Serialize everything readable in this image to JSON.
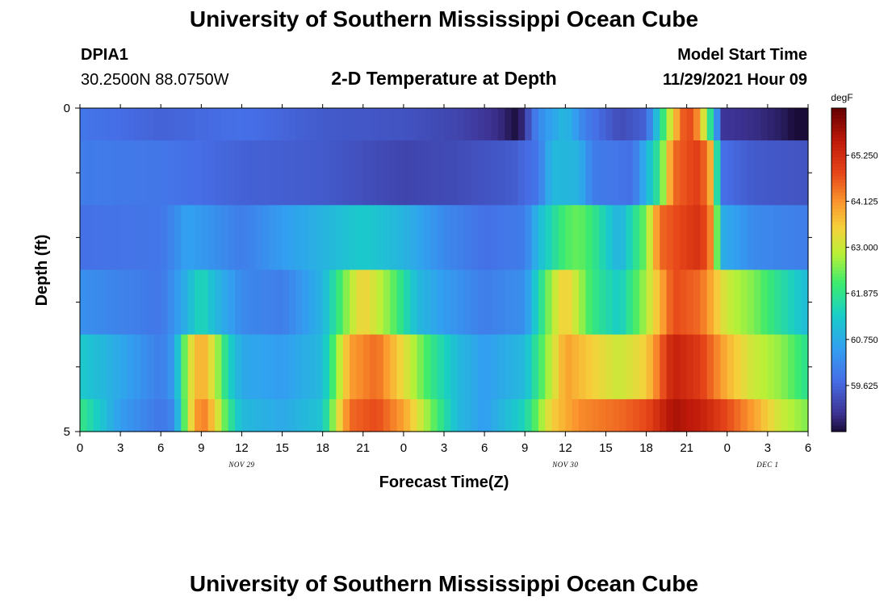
{
  "page": {
    "title": "University of Southern Mississippi Ocean Cube",
    "station_id": "DPIA1",
    "coordinates": "30.2500N  88.0750W",
    "chart_heading": "2-D Temperature at Depth",
    "model_label": "Model Start Time",
    "model_start": "11/29/2021 Hour 09",
    "bottom_title": "University of Southern Mississippi Ocean Cube"
  },
  "chart_data": {
    "type": "heatmap",
    "title": "2-D Temperature at Depth",
    "xlabel": "Forecast Time(Z)",
    "ylabel": "Depth (ft)",
    "colorbar_label": "degF",
    "colorbar_ticks": [
      59.625,
      60.75,
      61.875,
      63.0,
      64.125,
      65.25
    ],
    "colorbar_tick_labels": [
      "59.625",
      "60.750",
      "61.875",
      "63.000",
      "64.125",
      "65.250"
    ],
    "zlim": [
      58.5,
      66.4
    ],
    "xlim": [
      0,
      54
    ],
    "x_ticks": [
      0,
      3,
      6,
      9,
      12,
      15,
      18,
      21,
      24,
      27,
      30,
      33,
      36,
      39,
      42,
      45,
      48,
      51,
      54
    ],
    "x_tick_labels": [
      "0",
      "3",
      "6",
      "9",
      "12",
      "15",
      "18",
      "21",
      "0",
      "3",
      "6",
      "9",
      "12",
      "15",
      "18",
      "21",
      "0",
      "3",
      "6"
    ],
    "date_labels": [
      {
        "label": "NOV 29",
        "x": 12
      },
      {
        "label": "NOV 30",
        "x": 36
      },
      {
        "label": "DEC 1",
        "x": 51
      }
    ],
    "ylim": [
      0,
      5
    ],
    "y_tick_labels": [
      {
        "value": 0,
        "label": "0"
      },
      {
        "value": 5,
        "label": "5"
      }
    ],
    "y_minor_ticks": [
      1,
      2,
      3,
      4
    ],
    "layer_edges": [
      0,
      0.5,
      1.5,
      2.5,
      3.5,
      4.5,
      5
    ],
    "rows": [
      {
        "depth_band": "0-0.5",
        "knots": [
          [
            0,
            59.9
          ],
          [
            6,
            59.6
          ],
          [
            12,
            59.8
          ],
          [
            18,
            59.5
          ],
          [
            24,
            59.4
          ],
          [
            28,
            59.2
          ],
          [
            31,
            58.9
          ],
          [
            32.5,
            58.5
          ],
          [
            34,
            60.2
          ],
          [
            36,
            61.0
          ],
          [
            37.5,
            60.0
          ],
          [
            40,
            59.3
          ],
          [
            42,
            59.6
          ],
          [
            43,
            61.5
          ],
          [
            44,
            63.5
          ],
          [
            45,
            65.0
          ],
          [
            46,
            64.0
          ],
          [
            46.6,
            62.0
          ],
          [
            47,
            61.5
          ],
          [
            47.5,
            59.0
          ],
          [
            50,
            58.9
          ],
          [
            52,
            58.7
          ],
          [
            54,
            58.3
          ]
        ]
      },
      {
        "depth_band": "0.5-1.5",
        "knots": [
          [
            0,
            60.0
          ],
          [
            6,
            59.9
          ],
          [
            12,
            59.6
          ],
          [
            18,
            59.5
          ],
          [
            24,
            59.2
          ],
          [
            28,
            59.3
          ],
          [
            32,
            59.5
          ],
          [
            34,
            59.9
          ],
          [
            35,
            61.0
          ],
          [
            37,
            60.9
          ],
          [
            38,
            60.0
          ],
          [
            41,
            59.8
          ],
          [
            43,
            62.0
          ],
          [
            44,
            64.5
          ],
          [
            46,
            65.0
          ],
          [
            47,
            63.5
          ],
          [
            47.5,
            59.8
          ],
          [
            50,
            59.5
          ],
          [
            54,
            59.4
          ]
        ]
      },
      {
        "depth_band": "1.5-2.5",
        "knots": [
          [
            0,
            59.8
          ],
          [
            6,
            59.9
          ],
          [
            7,
            60.2
          ],
          [
            8,
            60.6
          ],
          [
            12,
            60.0
          ],
          [
            15,
            60.5
          ],
          [
            18,
            60.9
          ],
          [
            21,
            61.3
          ],
          [
            24,
            60.9
          ],
          [
            27,
            60.2
          ],
          [
            30,
            59.8
          ],
          [
            33,
            60.0
          ],
          [
            34,
            61.0
          ],
          [
            36,
            62.2
          ],
          [
            37,
            62.4
          ],
          [
            38,
            62.0
          ],
          [
            40,
            60.8
          ],
          [
            42,
            62.5
          ],
          [
            43,
            64.5
          ],
          [
            46,
            65.2
          ],
          [
            47,
            64.0
          ],
          [
            47.5,
            60.8
          ],
          [
            50,
            60.2
          ],
          [
            54,
            60.0
          ]
        ]
      },
      {
        "depth_band": "2.5-3.5",
        "knots": [
          [
            0,
            60.3
          ],
          [
            6,
            59.9
          ],
          [
            7.5,
            60.6
          ],
          [
            9,
            61.6
          ],
          [
            10,
            61.0
          ],
          [
            12,
            60.2
          ],
          [
            15,
            60.0
          ],
          [
            18,
            60.9
          ],
          [
            20,
            62.8
          ],
          [
            21,
            63.5
          ],
          [
            23,
            62.5
          ],
          [
            25,
            61.0
          ],
          [
            27,
            60.5
          ],
          [
            30,
            60.0
          ],
          [
            33,
            60.3
          ],
          [
            35,
            62.8
          ],
          [
            36,
            63.6
          ],
          [
            38,
            62.0
          ],
          [
            40,
            61.3
          ],
          [
            42,
            62.8
          ],
          [
            44,
            64.8
          ],
          [
            46,
            64.5
          ],
          [
            48,
            63.0
          ],
          [
            50,
            62.5
          ],
          [
            52,
            61.7
          ],
          [
            54,
            61.0
          ]
        ]
      },
      {
        "depth_band": "3.5-4.5",
        "knots": [
          [
            0,
            61.3
          ],
          [
            3,
            60.7
          ],
          [
            6,
            60.0
          ],
          [
            7,
            60.5
          ],
          [
            8,
            63.0
          ],
          [
            9,
            64.0
          ],
          [
            10,
            63.0
          ],
          [
            11,
            61.5
          ],
          [
            12,
            60.7
          ],
          [
            15,
            60.5
          ],
          [
            18,
            61.0
          ],
          [
            19,
            62.5
          ],
          [
            20,
            64.0
          ],
          [
            22,
            64.5
          ],
          [
            24,
            63.3
          ],
          [
            26,
            62.0
          ],
          [
            28,
            61.0
          ],
          [
            30,
            60.5
          ],
          [
            33,
            61.0
          ],
          [
            35,
            63.0
          ],
          [
            36,
            64.0
          ],
          [
            38,
            63.5
          ],
          [
            40,
            63.0
          ],
          [
            42,
            63.5
          ],
          [
            44,
            65.5
          ],
          [
            46,
            65.0
          ],
          [
            48,
            63.8
          ],
          [
            50,
            63.0
          ],
          [
            52,
            62.6
          ],
          [
            54,
            61.8
          ]
        ]
      },
      {
        "depth_band": "4.5-5",
        "knots": [
          [
            0,
            62.0
          ],
          [
            3,
            60.5
          ],
          [
            6,
            59.9
          ],
          [
            7,
            60.2
          ],
          [
            8,
            63.0
          ],
          [
            9,
            64.5
          ],
          [
            10,
            63.5
          ],
          [
            11,
            62.0
          ],
          [
            12,
            61.0
          ],
          [
            15,
            60.7
          ],
          [
            18,
            61.2
          ],
          [
            19,
            63.0
          ],
          [
            20,
            64.5
          ],
          [
            22,
            64.8
          ],
          [
            24,
            64.0
          ],
          [
            26,
            62.5
          ],
          [
            28,
            61.0
          ],
          [
            30,
            60.5
          ],
          [
            33,
            61.5
          ],
          [
            35,
            63.5
          ],
          [
            37,
            64.2
          ],
          [
            40,
            64.5
          ],
          [
            42,
            64.8
          ],
          [
            44,
            65.8
          ],
          [
            46,
            65.5
          ],
          [
            48,
            64.8
          ],
          [
            50,
            64.0
          ],
          [
            52,
            63.0
          ],
          [
            54,
            62.5
          ]
        ]
      }
    ]
  }
}
